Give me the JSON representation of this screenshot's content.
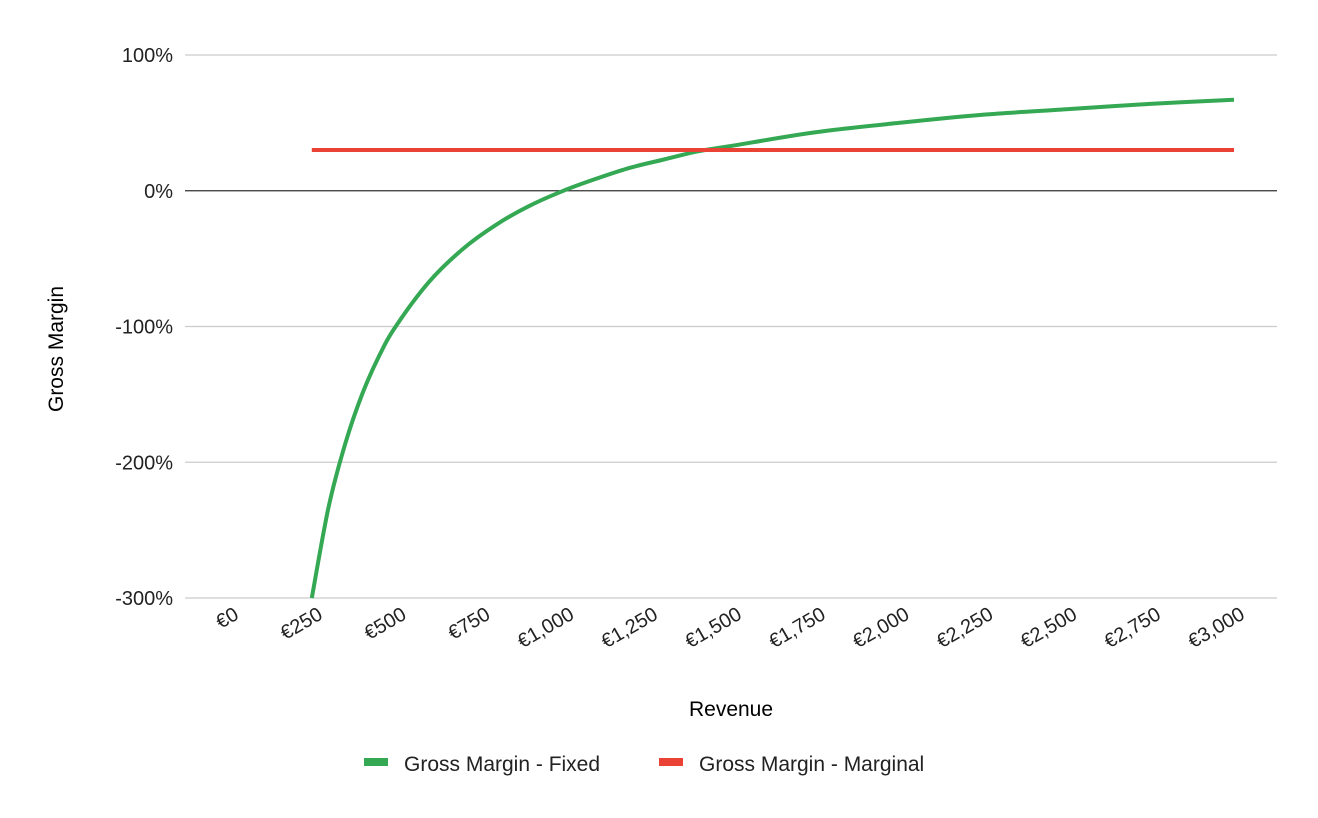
{
  "chart_data": {
    "type": "line",
    "title": "",
    "xlabel": "Revenue",
    "ylabel": "Gross Margin",
    "xlim": [
      0,
      3000
    ],
    "ylim": [
      -300,
      100
    ],
    "x_ticks": [
      0,
      250,
      500,
      750,
      1000,
      1250,
      1500,
      1750,
      2000,
      2250,
      2500,
      2750,
      3000
    ],
    "x_tick_labels": [
      "€0",
      "€250",
      "€500",
      "€750",
      "€1,000",
      "€1,250",
      "€1,500",
      "€1,750",
      "€2,000",
      "€2,250",
      "€2,500",
      "€2,750",
      "€3,000"
    ],
    "y_ticks": [
      100,
      0,
      -100,
      -200,
      -300
    ],
    "y_tick_labels": [
      "100%",
      "0%",
      "-100%",
      "-200%",
      "-300%"
    ],
    "grid": true,
    "legend_position": "bottom",
    "series": [
      {
        "name": "Gross Margin - Fixed",
        "color": "#34a853",
        "x": [
          250,
          300,
          350,
          400,
          450,
          500,
          600,
          700,
          800,
          900,
          1000,
          1100,
          1200,
          1300,
          1400,
          1500,
          1750,
          2000,
          2250,
          2500,
          2750,
          3000
        ],
        "y": [
          -300,
          -233,
          -186,
          -150,
          -122,
          -100,
          -67,
          -43,
          -25,
          -11,
          0,
          9,
          17,
          23,
          29,
          33,
          43,
          50,
          56,
          60,
          64,
          67
        ]
      },
      {
        "name": "Gross Margin - Marginal",
        "color": "#ea4335",
        "x": [
          250,
          3000
        ],
        "y": [
          30,
          30
        ]
      }
    ]
  }
}
